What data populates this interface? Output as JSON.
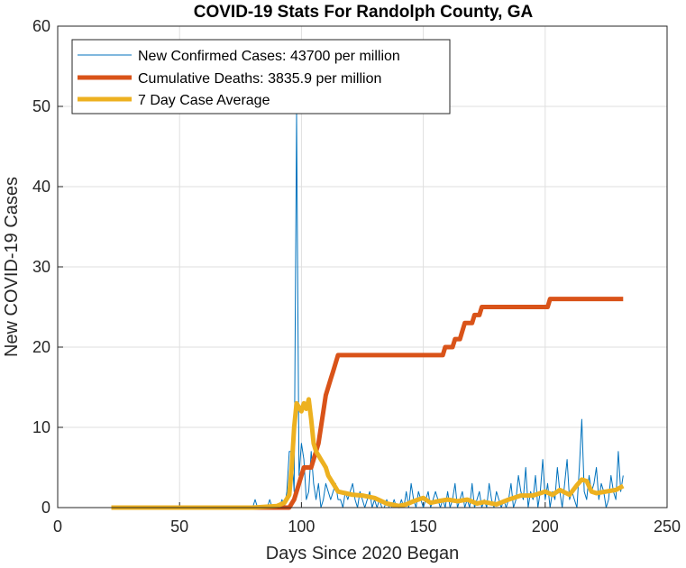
{
  "chart_data": {
    "type": "line",
    "title": "COVID-19 Stats For Randolph County, GA",
    "xlabel": "Days Since 2020 Began",
    "ylabel": "New COVID-19 Cases",
    "xlim": [
      0,
      250
    ],
    "ylim": [
      0,
      60
    ],
    "xticks": [
      0,
      50,
      100,
      150,
      200,
      250
    ],
    "yticks": [
      0,
      10,
      20,
      30,
      40,
      50,
      60
    ],
    "grid": true,
    "legend_position": "top-left",
    "series": [
      {
        "name": "New Confirmed Cases: 43700 per million",
        "color": "#0072BD",
        "width": 1,
        "x": [
          22,
          80,
          81,
          82,
          83,
          84,
          85,
          86,
          87,
          88,
          89,
          90,
          91,
          92,
          93,
          94,
          95,
          96,
          97,
          98,
          99,
          100,
          101,
          102,
          103,
          104,
          105,
          106,
          107,
          108,
          109,
          110,
          111,
          112,
          113,
          114,
          115,
          116,
          117,
          118,
          119,
          120,
          121,
          122,
          123,
          124,
          125,
          126,
          127,
          128,
          129,
          130,
          131,
          132,
          133,
          134,
          135,
          136,
          137,
          138,
          139,
          140,
          141,
          142,
          143,
          144,
          145,
          146,
          147,
          148,
          149,
          150,
          151,
          152,
          153,
          154,
          155,
          156,
          157,
          158,
          159,
          160,
          161,
          162,
          163,
          164,
          165,
          166,
          167,
          168,
          169,
          170,
          171,
          172,
          173,
          174,
          175,
          176,
          177,
          178,
          179,
          180,
          181,
          182,
          183,
          184,
          185,
          186,
          187,
          188,
          189,
          190,
          191,
          192,
          193,
          194,
          195,
          196,
          197,
          198,
          199,
          200,
          201,
          202,
          203,
          204,
          205,
          206,
          207,
          208,
          209,
          210,
          211,
          212,
          213,
          214,
          215,
          216,
          217,
          218,
          219,
          220,
          221,
          222,
          223,
          224,
          225,
          226,
          227,
          228,
          229,
          230,
          231,
          232
        ],
        "y": [
          0,
          0,
          1,
          0,
          0,
          0,
          0,
          0,
          1,
          0,
          0,
          0,
          0,
          1,
          0,
          2,
          7,
          7,
          2,
          49,
          4,
          8,
          6,
          1,
          2,
          7,
          3,
          1,
          3,
          0,
          1,
          3,
          2,
          1,
          2,
          3,
          1,
          1,
          0,
          2,
          1,
          2,
          3,
          1,
          0,
          2,
          1,
          0,
          1,
          2,
          0,
          1,
          0,
          1,
          0,
          0,
          1,
          0,
          0,
          1,
          0,
          0,
          1,
          0,
          2,
          0,
          3,
          1,
          0,
          2,
          1,
          0,
          1,
          2,
          0,
          1,
          2,
          1,
          0,
          1,
          0,
          2,
          0,
          1,
          3,
          0,
          1,
          2,
          0,
          1,
          0,
          3,
          0,
          1,
          2,
          0,
          1,
          0,
          3,
          1,
          0,
          2,
          1,
          0,
          1,
          0,
          1,
          3,
          0,
          1,
          4,
          2,
          1,
          5,
          0,
          2,
          1,
          4,
          0,
          2,
          6,
          1,
          3,
          0,
          2,
          1,
          5,
          2,
          0,
          3,
          6,
          1,
          2,
          1,
          0,
          5,
          11,
          2,
          1,
          4,
          2,
          3,
          5,
          1,
          3,
          2,
          0,
          1,
          4,
          2,
          1,
          7,
          2,
          4
        ]
      },
      {
        "name": "Cumulative Deaths: 3835.9 per million",
        "color": "#D95319",
        "width": 5,
        "x": [
          22,
          95,
          96,
          97,
          98,
          99,
          100,
          101,
          102,
          103,
          104,
          105,
          106,
          107,
          108,
          109,
          110,
          111,
          112,
          113,
          114,
          115,
          116,
          157,
          158,
          159,
          162,
          163,
          165,
          166,
          167,
          170,
          171,
          173,
          174,
          175,
          176,
          180,
          200,
          201,
          202,
          203,
          204,
          215,
          216,
          232
        ],
        "y": [
          0,
          0,
          0.5,
          1,
          2,
          3,
          4,
          5,
          5,
          5,
          5,
          6,
          7,
          8,
          10,
          12,
          14,
          15,
          16,
          17,
          18,
          19,
          19,
          19,
          19,
          20,
          20,
          21,
          21,
          22,
          23,
          23,
          24,
          24,
          25,
          25,
          25,
          25,
          25,
          25,
          26,
          26,
          26,
          26,
          26,
          26
        ]
      },
      {
        "name": "7 Day Case Average",
        "color": "#EDB120",
        "width": 5,
        "x": [
          22,
          80,
          85,
          90,
          93,
          95,
          96,
          97,
          98,
          99,
          100,
          101,
          102,
          103,
          104,
          105,
          106,
          107,
          108,
          109,
          110,
          111,
          113,
          115,
          118,
          121,
          125,
          130,
          135,
          140,
          143,
          146,
          150,
          153,
          156,
          160,
          164,
          168,
          172,
          175,
          180,
          185,
          190,
          195,
          200,
          203,
          206,
          210,
          213,
          215,
          217,
          219,
          221,
          225,
          229,
          232
        ],
        "y": [
          0,
          0,
          0.1,
          0.2,
          0.6,
          1.6,
          5,
          10,
          13,
          12.5,
          12,
          13,
          12.3,
          13.5,
          11,
          8,
          7,
          6.5,
          6,
          5.5,
          5,
          4,
          3,
          2,
          1.8,
          1.6,
          1.5,
          1.2,
          0.5,
          0.2,
          0.4,
          0.8,
          1.2,
          0.6,
          0.8,
          1,
          0.8,
          1,
          0.5,
          0.7,
          0.4,
          1,
          1.5,
          1.5,
          2,
          1.6,
          2.2,
          1.6,
          2.8,
          3.5,
          3.3,
          2,
          1.8,
          2,
          2.2,
          2.7
        ]
      }
    ]
  }
}
